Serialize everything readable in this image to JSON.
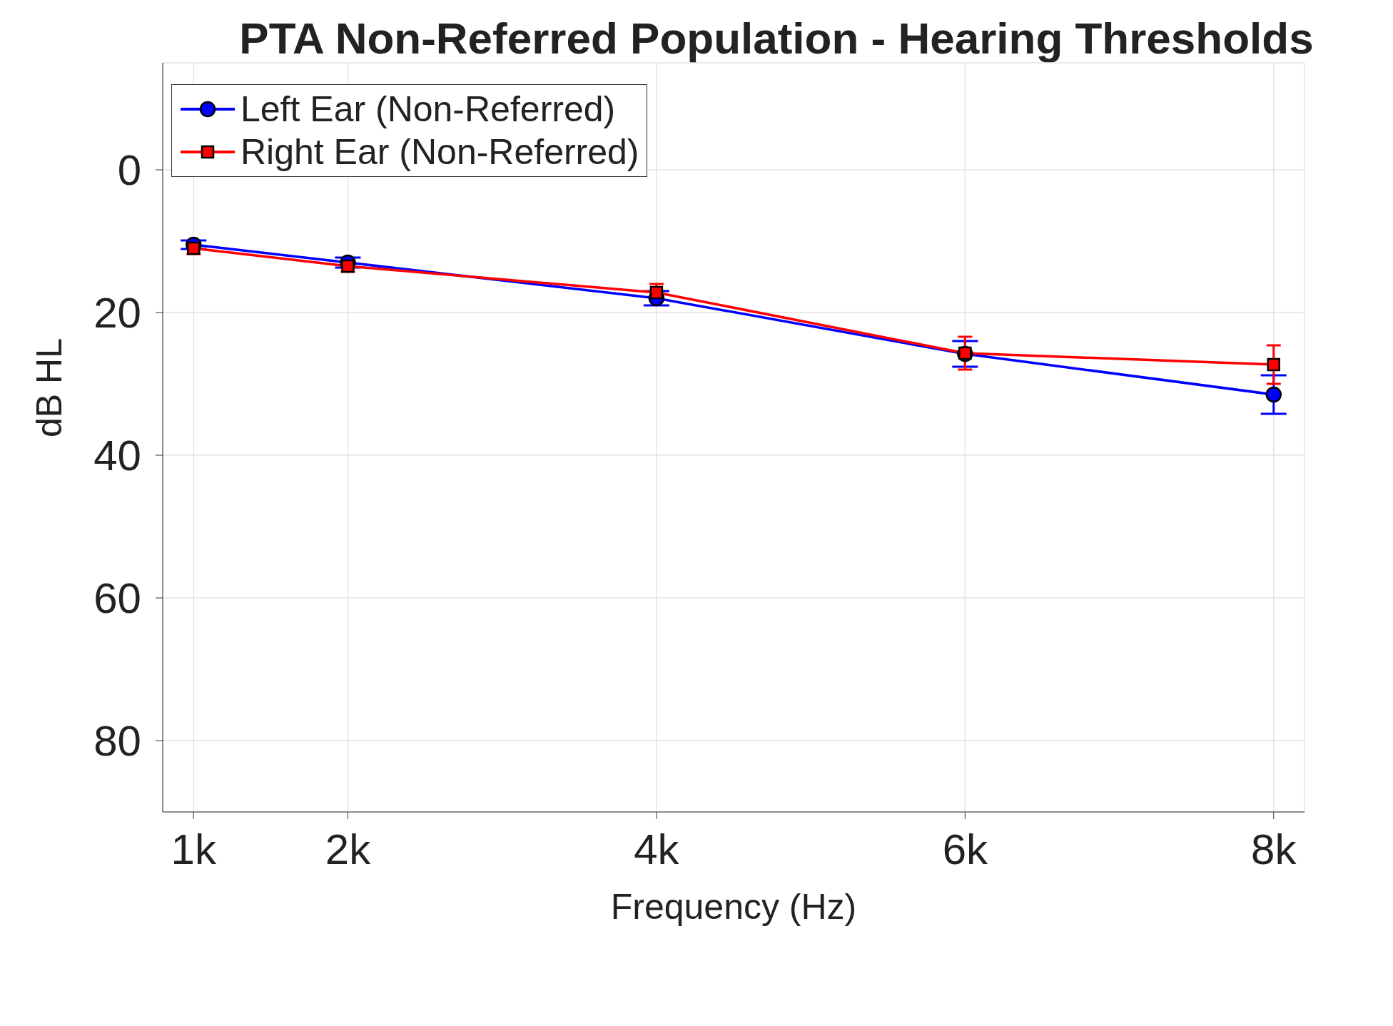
{
  "chart_data": {
    "type": "line",
    "title": "PTA Non-Referred Population - Hearing Thresholds",
    "xlabel": "Frequency (Hz)",
    "ylabel": "dB HL",
    "x": [
      1000,
      2000,
      4000,
      6000,
      8000
    ],
    "series": [
      {
        "name": "Left Ear (Non-Referred)",
        "color": "#0000ff",
        "marker": "circle",
        "values": [
          10.5,
          13,
          18,
          25.8,
          31.5
        ],
        "errors": [
          0.6,
          0.7,
          1,
          1.8,
          2.7
        ]
      },
      {
        "name": "Right Ear (Non-Referred)",
        "color": "#ff0000",
        "marker": "square",
        "values": [
          11,
          13.5,
          17.2,
          25.7,
          27.3
        ],
        "errors": [
          0.8,
          0.8,
          1.2,
          2.3,
          2.7
        ]
      }
    ],
    "xlim": [
      800,
      8200
    ],
    "xticks": [
      {
        "value": 1000,
        "label": "1k"
      },
      {
        "value": 2000,
        "label": "2k"
      },
      {
        "value": 4000,
        "label": "4k"
      },
      {
        "value": 6000,
        "label": "6k"
      },
      {
        "value": 8000,
        "label": "8k"
      }
    ],
    "ylim": [
      90,
      -15
    ],
    "yticks": [
      0,
      20,
      40,
      60,
      80
    ],
    "grid": true,
    "legend": "top left"
  }
}
